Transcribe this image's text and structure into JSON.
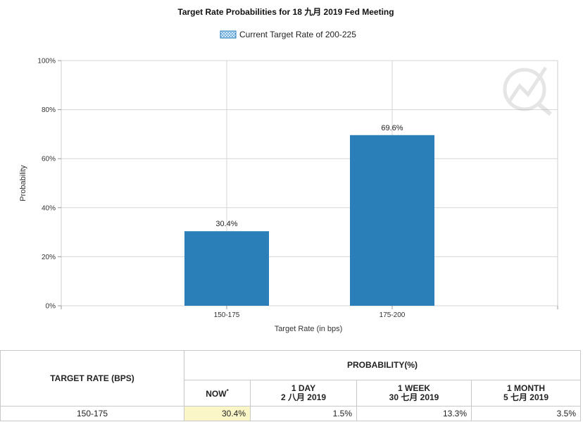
{
  "chart_data": {
    "type": "bar",
    "title": "Target Rate Probabilities for 18 九月 2019  Fed Meeting",
    "legend": "Current Target Rate of 200-225",
    "xlabel": "Target Rate (in bps)",
    "ylabel": "Probability",
    "categories": [
      "150-175",
      "175-200"
    ],
    "values": [
      30.4,
      69.6
    ],
    "data_labels": [
      "30.4%",
      "69.6%"
    ],
    "ylim": [
      0,
      100
    ],
    "yticks": [
      "0%",
      "20%",
      "40%",
      "60%",
      "80%",
      "100%"
    ],
    "grid": true,
    "bar_color": "#2a7fb8",
    "legend_placement": "top-center"
  },
  "table": {
    "col_target": "TARGET RATE (BPS)",
    "col_probability": "PROBABILITY(%)",
    "sub_now": "NOW",
    "sub_now_mark": "*",
    "sub_1day": "1 DAY",
    "sub_1day_date": "2 八月 2019",
    "sub_1week": "1 WEEK",
    "sub_1week_date": "30 七月 2019",
    "sub_1month": "1 MONTH",
    "sub_1month_date": "5 七月 2019",
    "rows": [
      {
        "rate": "150-175",
        "now": "30.4%",
        "day": "1.5%",
        "week": "13.3%",
        "month": "3.5%"
      }
    ]
  }
}
